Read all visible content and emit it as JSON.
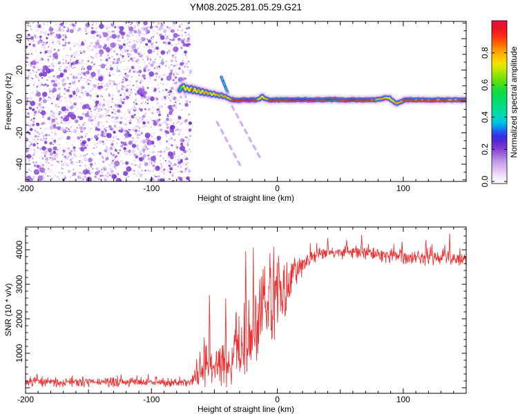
{
  "figure": {
    "title": "YM08.2025.281.05.29.G21",
    "background": "#ffffff",
    "text_color": "#000000"
  },
  "chart_data": [
    {
      "type": "heatmap",
      "panel": "spectrogram",
      "title": "YM08.2025.281.05.29.G21",
      "xlabel": "Height of straight line (km)",
      "ylabel": "Frequency (Hz)",
      "xlim": [
        -200,
        150
      ],
      "ylim": [
        -51,
        51
      ],
      "xticks": [
        -200,
        -100,
        0,
        100
      ],
      "xtick_labels": [
        "-200",
        "-100",
        "0",
        "100"
      ],
      "x_minor_step": 10,
      "x_medium_step": 50,
      "yticks": [
        -40,
        -20,
        0,
        20,
        40
      ],
      "ytick_labels": [
        "-40",
        "-20",
        "0",
        "20",
        "40"
      ],
      "y_minor_step": 5,
      "y_medium_step": 10,
      "grid": false,
      "legend_position": "none",
      "colorbar": {
        "label": "Normalized spectral amplitude",
        "range": [
          0,
          1
        ],
        "ticks": [
          0.0,
          0.2,
          0.4,
          0.6,
          0.8
        ],
        "tick_labels": [
          "0.0",
          "0.2",
          "0.4",
          "0.6",
          "0.8"
        ],
        "stops": [
          [
            0.0,
            "#ffffff"
          ],
          [
            0.04,
            "#f2e8fb"
          ],
          [
            0.09,
            "#ddc0f2"
          ],
          [
            0.14,
            "#c096e8"
          ],
          [
            0.18,
            "#9e66dc"
          ],
          [
            0.22,
            "#7c3ad0"
          ],
          [
            0.26,
            "#5428d4"
          ],
          [
            0.29,
            "#3430e4"
          ],
          [
            0.32,
            "#2858f0"
          ],
          [
            0.35,
            "#00a0ec"
          ],
          [
            0.38,
            "#00c8dc"
          ],
          [
            0.42,
            "#00d8b4"
          ],
          [
            0.47,
            "#00dc88"
          ],
          [
            0.52,
            "#00dc60"
          ],
          [
            0.57,
            "#14dc3c"
          ],
          [
            0.62,
            "#50e014"
          ],
          [
            0.67,
            "#96e400"
          ],
          [
            0.71,
            "#d2e800"
          ],
          [
            0.74,
            "#f4e000"
          ],
          [
            0.78,
            "#ffc000"
          ],
          [
            0.82,
            "#ff9800"
          ],
          [
            0.86,
            "#ff6400"
          ],
          [
            0.9,
            "#fc3214"
          ],
          [
            0.95,
            "#f01424"
          ],
          [
            1.0,
            "#e4103c"
          ]
        ]
      },
      "noise_region": {
        "x_range": [
          -200,
          -69
        ],
        "description": "broadband purple speckle noise filling full frequency band",
        "seed": 42,
        "count": 2900,
        "palette": [
          "#f0e6fb",
          "#e4d0f7",
          "#d4b6f1",
          "#c29aea",
          "#ae7ce2",
          "#9a5eda",
          "#8342d2",
          "#6f2cc9"
        ]
      },
      "trace_seed": 3,
      "trace_keypoints": [
        [
          -77.5,
          7.0,
          0.55
        ],
        [
          -76,
          9.0,
          0.68
        ],
        [
          -74.5,
          10.2,
          0.75
        ],
        [
          -73,
          7.0,
          0.8
        ],
        [
          -71.5,
          9.2,
          0.72
        ],
        [
          -70,
          6.6,
          0.78
        ],
        [
          -68.5,
          8.8,
          0.85
        ],
        [
          -67,
          6.2,
          0.9
        ],
        [
          -65.5,
          8.2,
          0.8
        ],
        [
          -64,
          5.6,
          0.76
        ],
        [
          -62.5,
          7.6,
          0.85
        ],
        [
          -61,
          5.2,
          0.8
        ],
        [
          -59.5,
          7.0,
          0.76
        ],
        [
          -58,
          4.8,
          0.85
        ],
        [
          -56.5,
          6.4,
          0.8
        ],
        [
          -55,
          4.4,
          0.82
        ],
        [
          -53.5,
          5.8,
          0.85
        ],
        [
          -52,
          4.0,
          0.8
        ],
        [
          -50.5,
          5.2,
          0.76
        ],
        [
          -49,
          3.6,
          0.82
        ],
        [
          -47.5,
          4.6,
          0.85
        ],
        [
          -46,
          3.2,
          0.8
        ],
        [
          -44.5,
          4.0,
          0.78
        ],
        [
          -43,
          2.8,
          0.82
        ],
        [
          -41.5,
          3.4,
          0.8
        ],
        [
          -40,
          2.3,
          0.85
        ],
        [
          -38.5,
          1.8,
          0.82
        ],
        [
          -37,
          1.4,
          0.86
        ],
        [
          -35.5,
          1.1,
          0.9
        ],
        [
          -34,
          0.9,
          0.93
        ],
        [
          -32,
          0.8,
          0.91
        ],
        [
          -30,
          0.8,
          0.93
        ],
        [
          -28,
          0.9,
          0.96
        ],
        [
          -26,
          1.0,
          0.97
        ],
        [
          -24,
          1.0,
          0.97
        ],
        [
          -22,
          1.0,
          0.96
        ],
        [
          -20,
          1.0,
          0.97
        ],
        [
          -18,
          1.0,
          0.95
        ],
        [
          -16,
          1.2,
          0.9
        ],
        [
          -14,
          1.7,
          0.82
        ],
        [
          -13,
          2.7,
          0.78
        ],
        [
          -12,
          3.3,
          0.8
        ],
        [
          -11,
          2.6,
          0.76
        ],
        [
          -10,
          1.7,
          0.82
        ],
        [
          -8,
          1.2,
          0.86
        ],
        [
          -6,
          1.0,
          0.9
        ],
        [
          -4,
          1.0,
          0.92
        ],
        [
          -2,
          1.0,
          0.93
        ],
        [
          0,
          1.0,
          0.94
        ],
        [
          5,
          1.0,
          0.92
        ],
        [
          10,
          1.0,
          0.95
        ],
        [
          15,
          1.0,
          0.96
        ],
        [
          20,
          1.1,
          0.95
        ],
        [
          25,
          1.0,
          0.96
        ],
        [
          30,
          1.0,
          0.94
        ],
        [
          35,
          1.0,
          0.92
        ],
        [
          40,
          1.1,
          0.93
        ],
        [
          45,
          1.3,
          0.9
        ],
        [
          50,
          1.1,
          0.92
        ],
        [
          55,
          1.0,
          0.9
        ],
        [
          60,
          1.0,
          0.93
        ],
        [
          65,
          1.0,
          0.91
        ],
        [
          70,
          1.0,
          0.92
        ],
        [
          75,
          1.0,
          0.9
        ],
        [
          80,
          1.2,
          0.88
        ],
        [
          83,
          1.8,
          0.85
        ],
        [
          86,
          2.5,
          0.84
        ],
        [
          89,
          2.1,
          0.82
        ],
        [
          91,
          0.8,
          0.8
        ],
        [
          93,
          -0.5,
          0.84
        ],
        [
          95,
          -1.1,
          0.88
        ],
        [
          97,
          -0.7,
          0.85
        ],
        [
          99,
          0.2,
          0.86
        ],
        [
          101,
          0.8,
          0.88
        ],
        [
          103,
          1.0,
          0.9
        ],
        [
          108,
          1.0,
          0.88
        ],
        [
          113,
          1.1,
          0.9
        ],
        [
          118,
          0.9,
          0.88
        ],
        [
          123,
          1.0,
          0.9
        ],
        [
          128,
          1.0,
          0.88
        ],
        [
          133,
          1.0,
          0.9
        ],
        [
          138,
          1.0,
          0.88
        ],
        [
          143,
          1.0,
          0.9
        ],
        [
          147,
          1.0,
          0.88
        ],
        [
          150,
          1.0,
          0.9
        ]
      ],
      "streaks": [
        {
          "name": "upper-cyan-streak",
          "style": "bright",
          "points": [
            [
              -44.5,
              15.5
            ],
            [
              -39.5,
              5.5
            ]
          ]
        },
        {
          "name": "lower-faint-streak-1",
          "style": "faint",
          "points": [
            [
              -48,
              -13
            ],
            [
              -28,
              -43
            ]
          ]
        },
        {
          "name": "lower-faint-streak-2",
          "style": "faint",
          "points": [
            [
              -36,
              -3
            ],
            [
              -13,
              -37
            ]
          ]
        }
      ]
    },
    {
      "type": "line",
      "panel": "snr",
      "xlabel": "Height of straight line (km)",
      "ylabel": "SNR (10 * v/v)",
      "xlim": [
        -200,
        150
      ],
      "ylim": [
        -160,
        4660
      ],
      "xticks": [
        -200,
        -100,
        0,
        100
      ],
      "xtick_labels": [
        "-200",
        "-100",
        "0",
        "100"
      ],
      "x_minor_step": 10,
      "x_medium_step": 50,
      "yticks": [
        1000,
        2000,
        3000,
        4000
      ],
      "ytick_labels": [
        "1000",
        "2000",
        "3000",
        "4000"
      ],
      "y_minor_step": 200,
      "grid": false,
      "color": "#f03030",
      "seed": 7,
      "step_km": 0.3,
      "envelope": [
        [
          -200,
          160,
          170
        ],
        [
          -75,
          160,
          170
        ],
        [
          -70,
          180,
          200
        ],
        [
          -67,
          260,
          260
        ],
        [
          -63,
          420,
          420
        ],
        [
          -59,
          520,
          650
        ],
        [
          -55,
          640,
          900
        ],
        [
          -52,
          560,
          520
        ],
        [
          -48,
          640,
          640
        ],
        [
          -44,
          720,
          800
        ],
        [
          -41,
          820,
          1100
        ],
        [
          -38,
          700,
          700
        ],
        [
          -34,
          900,
          900
        ],
        [
          -30,
          1100,
          1100
        ],
        [
          -26,
          1300,
          1300
        ],
        [
          -22,
          1600,
          1500
        ],
        [
          -18,
          1900,
          1600
        ],
        [
          -14,
          2100,
          1600
        ],
        [
          -10,
          2250,
          1500
        ],
        [
          -6,
          2350,
          1500
        ],
        [
          -2,
          2450,
          1450
        ],
        [
          2,
          2550,
          1300
        ],
        [
          6,
          2700,
          1150
        ],
        [
          10,
          2950,
          800
        ],
        [
          14,
          3250,
          550
        ],
        [
          18,
          3500,
          420
        ],
        [
          22,
          3680,
          330
        ],
        [
          26,
          3800,
          280
        ],
        [
          32,
          3890,
          230
        ],
        [
          40,
          3940,
          230
        ],
        [
          50,
          3950,
          240
        ],
        [
          60,
          3920,
          220
        ],
        [
          70,
          3900,
          220
        ],
        [
          80,
          3880,
          240
        ],
        [
          90,
          3840,
          250
        ],
        [
          100,
          3810,
          260
        ],
        [
          110,
          3790,
          270
        ],
        [
          120,
          3780,
          280
        ],
        [
          130,
          3800,
          290
        ],
        [
          138,
          3760,
          280
        ],
        [
          144,
          3720,
          270
        ],
        [
          150,
          3700,
          260
        ]
      ],
      "spikes": [
        [
          -64,
          820
        ],
        [
          -58,
          1450
        ],
        [
          -54,
          2680
        ],
        [
          -41,
          2580
        ],
        [
          -33,
          2150
        ],
        [
          -25,
          3950
        ],
        [
          -19,
          4060
        ],
        [
          -14,
          3150
        ],
        [
          -10,
          3520
        ],
        [
          -6,
          3900
        ],
        [
          -3,
          4080
        ],
        [
          1,
          3820
        ],
        [
          5,
          3400
        ],
        [
          40,
          4330
        ],
        [
          55,
          4280
        ],
        [
          67,
          4430
        ],
        [
          99,
          4230
        ],
        [
          118,
          4280
        ],
        [
          137,
          4460
        ]
      ]
    }
  ]
}
